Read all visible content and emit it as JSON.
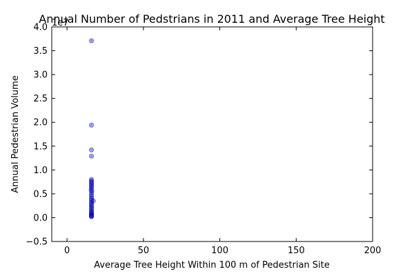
{
  "chart_data": {
    "type": "scatter",
    "title": "Annual Number of Pedstrians in 2011 and Average Tree Height",
    "xlabel": "Average Tree Height Within 100 m of Pedestrian Site",
    "ylabel": "Annual Pedestrian Volume",
    "y_offset_label": "1e7",
    "xlim": [
      -10,
      200
    ],
    "ylim": [
      -0.5,
      4.0
    ],
    "y_scale_factor": 10000000,
    "x_ticks": [
      0,
      50,
      100,
      150,
      200
    ],
    "x_tick_labels": [
      "0",
      "50",
      "100",
      "150",
      "200"
    ],
    "y_ticks": [
      -0.5,
      0.0,
      0.5,
      1.0,
      1.5,
      2.0,
      2.5,
      3.0,
      3.5,
      4.0
    ],
    "y_tick_labels": [
      "−0.5",
      "0.0",
      "0.5",
      "1.0",
      "1.5",
      "2.0",
      "2.5",
      "3.0",
      "3.5",
      "4.0"
    ],
    "grid": false,
    "marker_color": "#0000ff",
    "marker_alpha": 0.4,
    "series": [
      {
        "points": [
          {
            "x": 16.0,
            "y": 3.71
          },
          {
            "x": 16.0,
            "y": 1.94
          },
          {
            "x": 16.0,
            "y": 1.42
          },
          {
            "x": 16.0,
            "y": 1.29
          },
          {
            "x": 16.0,
            "y": 0.8
          },
          {
            "x": 16.0,
            "y": 0.77
          },
          {
            "x": 16.0,
            "y": 0.74
          },
          {
            "x": 16.0,
            "y": 0.71
          },
          {
            "x": 16.0,
            "y": 0.68
          },
          {
            "x": 16.0,
            "y": 0.65
          },
          {
            "x": 16.0,
            "y": 0.62
          },
          {
            "x": 15.8,
            "y": 0.58
          },
          {
            "x": 16.2,
            "y": 0.56
          },
          {
            "x": 16.0,
            "y": 0.52
          },
          {
            "x": 16.0,
            "y": 0.48
          },
          {
            "x": 16.0,
            "y": 0.44
          },
          {
            "x": 16.0,
            "y": 0.4
          },
          {
            "x": 16.0,
            "y": 0.37
          },
          {
            "x": 17.2,
            "y": 0.35
          },
          {
            "x": 16.0,
            "y": 0.33
          },
          {
            "x": 16.0,
            "y": 0.3
          },
          {
            "x": 16.0,
            "y": 0.27
          },
          {
            "x": 16.0,
            "y": 0.24
          },
          {
            "x": 16.0,
            "y": 0.21
          },
          {
            "x": 16.0,
            "y": 0.18
          },
          {
            "x": 16.0,
            "y": 0.15
          },
          {
            "x": 16.0,
            "y": 0.12
          },
          {
            "x": 16.0,
            "y": 0.1
          },
          {
            "x": 16.0,
            "y": 0.08
          },
          {
            "x": 16.0,
            "y": 0.06
          },
          {
            "x": 16.0,
            "y": 0.04
          },
          {
            "x": 16.0,
            "y": 0.03
          },
          {
            "x": 16.0,
            "y": 0.02
          }
        ]
      }
    ]
  }
}
